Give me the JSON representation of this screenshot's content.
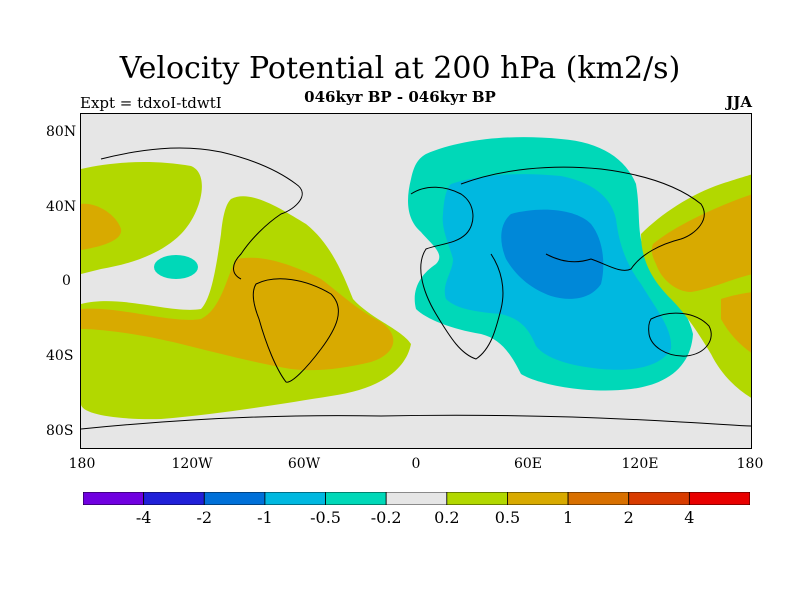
{
  "title": "Velocity Potential at 200 hPa (km2/s)",
  "subtitle": "046kyr BP - 046kyr BP",
  "experiment": "Expt = tdxoI-tdwtI",
  "season": "JJA",
  "map": {
    "projection": "cylindrical equidistant",
    "lat_range": [
      -90,
      90
    ],
    "lon_range": [
      -180,
      180
    ],
    "lat_ticks": [
      "80N",
      "40N",
      "0",
      "40S",
      "80S"
    ],
    "lon_ticks": [
      "180",
      "120W",
      "60W",
      "0",
      "60E",
      "120E",
      "180"
    ],
    "colors": {
      "background": "#e6e6e6",
      "blue_lightest": "#00d8b8",
      "blue_light": "#00b8e0",
      "blue_mid": "#0088d8",
      "green": "#b2d800",
      "orange": "#d8aa00"
    }
  },
  "colorbar": {
    "colors": [
      "#7000e0",
      "#2020d8",
      "#0070d8",
      "#00b8e0",
      "#00d8b8",
      "#e6e6e6",
      "#b2d800",
      "#d8aa00",
      "#d87000",
      "#d83c00",
      "#e80000"
    ],
    "labels": [
      "-4",
      "-2",
      "-1",
      "-0.5",
      "-0.2",
      "0.2",
      "0.5",
      "1",
      "2",
      "4"
    ]
  }
}
